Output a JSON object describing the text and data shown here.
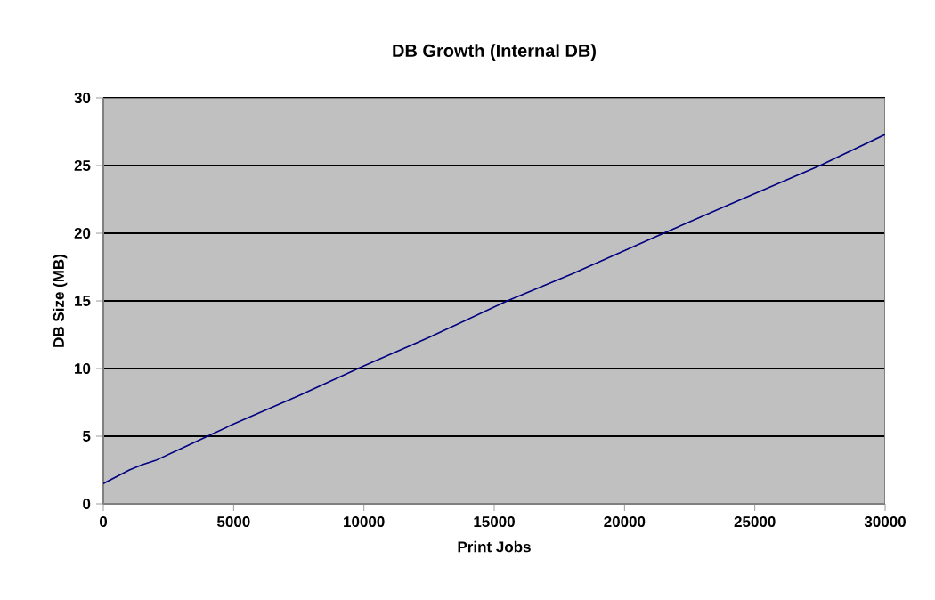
{
  "chart_data": {
    "type": "line",
    "title": "DB Growth (Internal DB)",
    "xlabel": "Print Jobs",
    "ylabel": "DB Size (MB)",
    "x": [
      0,
      500,
      1000,
      1500,
      2000,
      3000,
      4000,
      5000,
      7500,
      10000,
      12500,
      15500,
      18000,
      21500,
      24000,
      27500,
      30000
    ],
    "series": [
      {
        "color": "#000080",
        "values": [
          1.5,
          2.0,
          2.5,
          2.9,
          3.2,
          4.1,
          5.0,
          5.9,
          8.0,
          10.2,
          12.3,
          15.0,
          17.0,
          20.0,
          22.1,
          25.0,
          27.3
        ]
      }
    ],
    "xlim": [
      0,
      30000
    ],
    "ylim": [
      0,
      30
    ],
    "xticks": [
      0,
      5000,
      10000,
      15000,
      20000,
      25000,
      30000
    ],
    "yticks": [
      0,
      5,
      10,
      15,
      20,
      25,
      30
    ],
    "grid": "y",
    "marker": "none",
    "line_style": "solid"
  }
}
